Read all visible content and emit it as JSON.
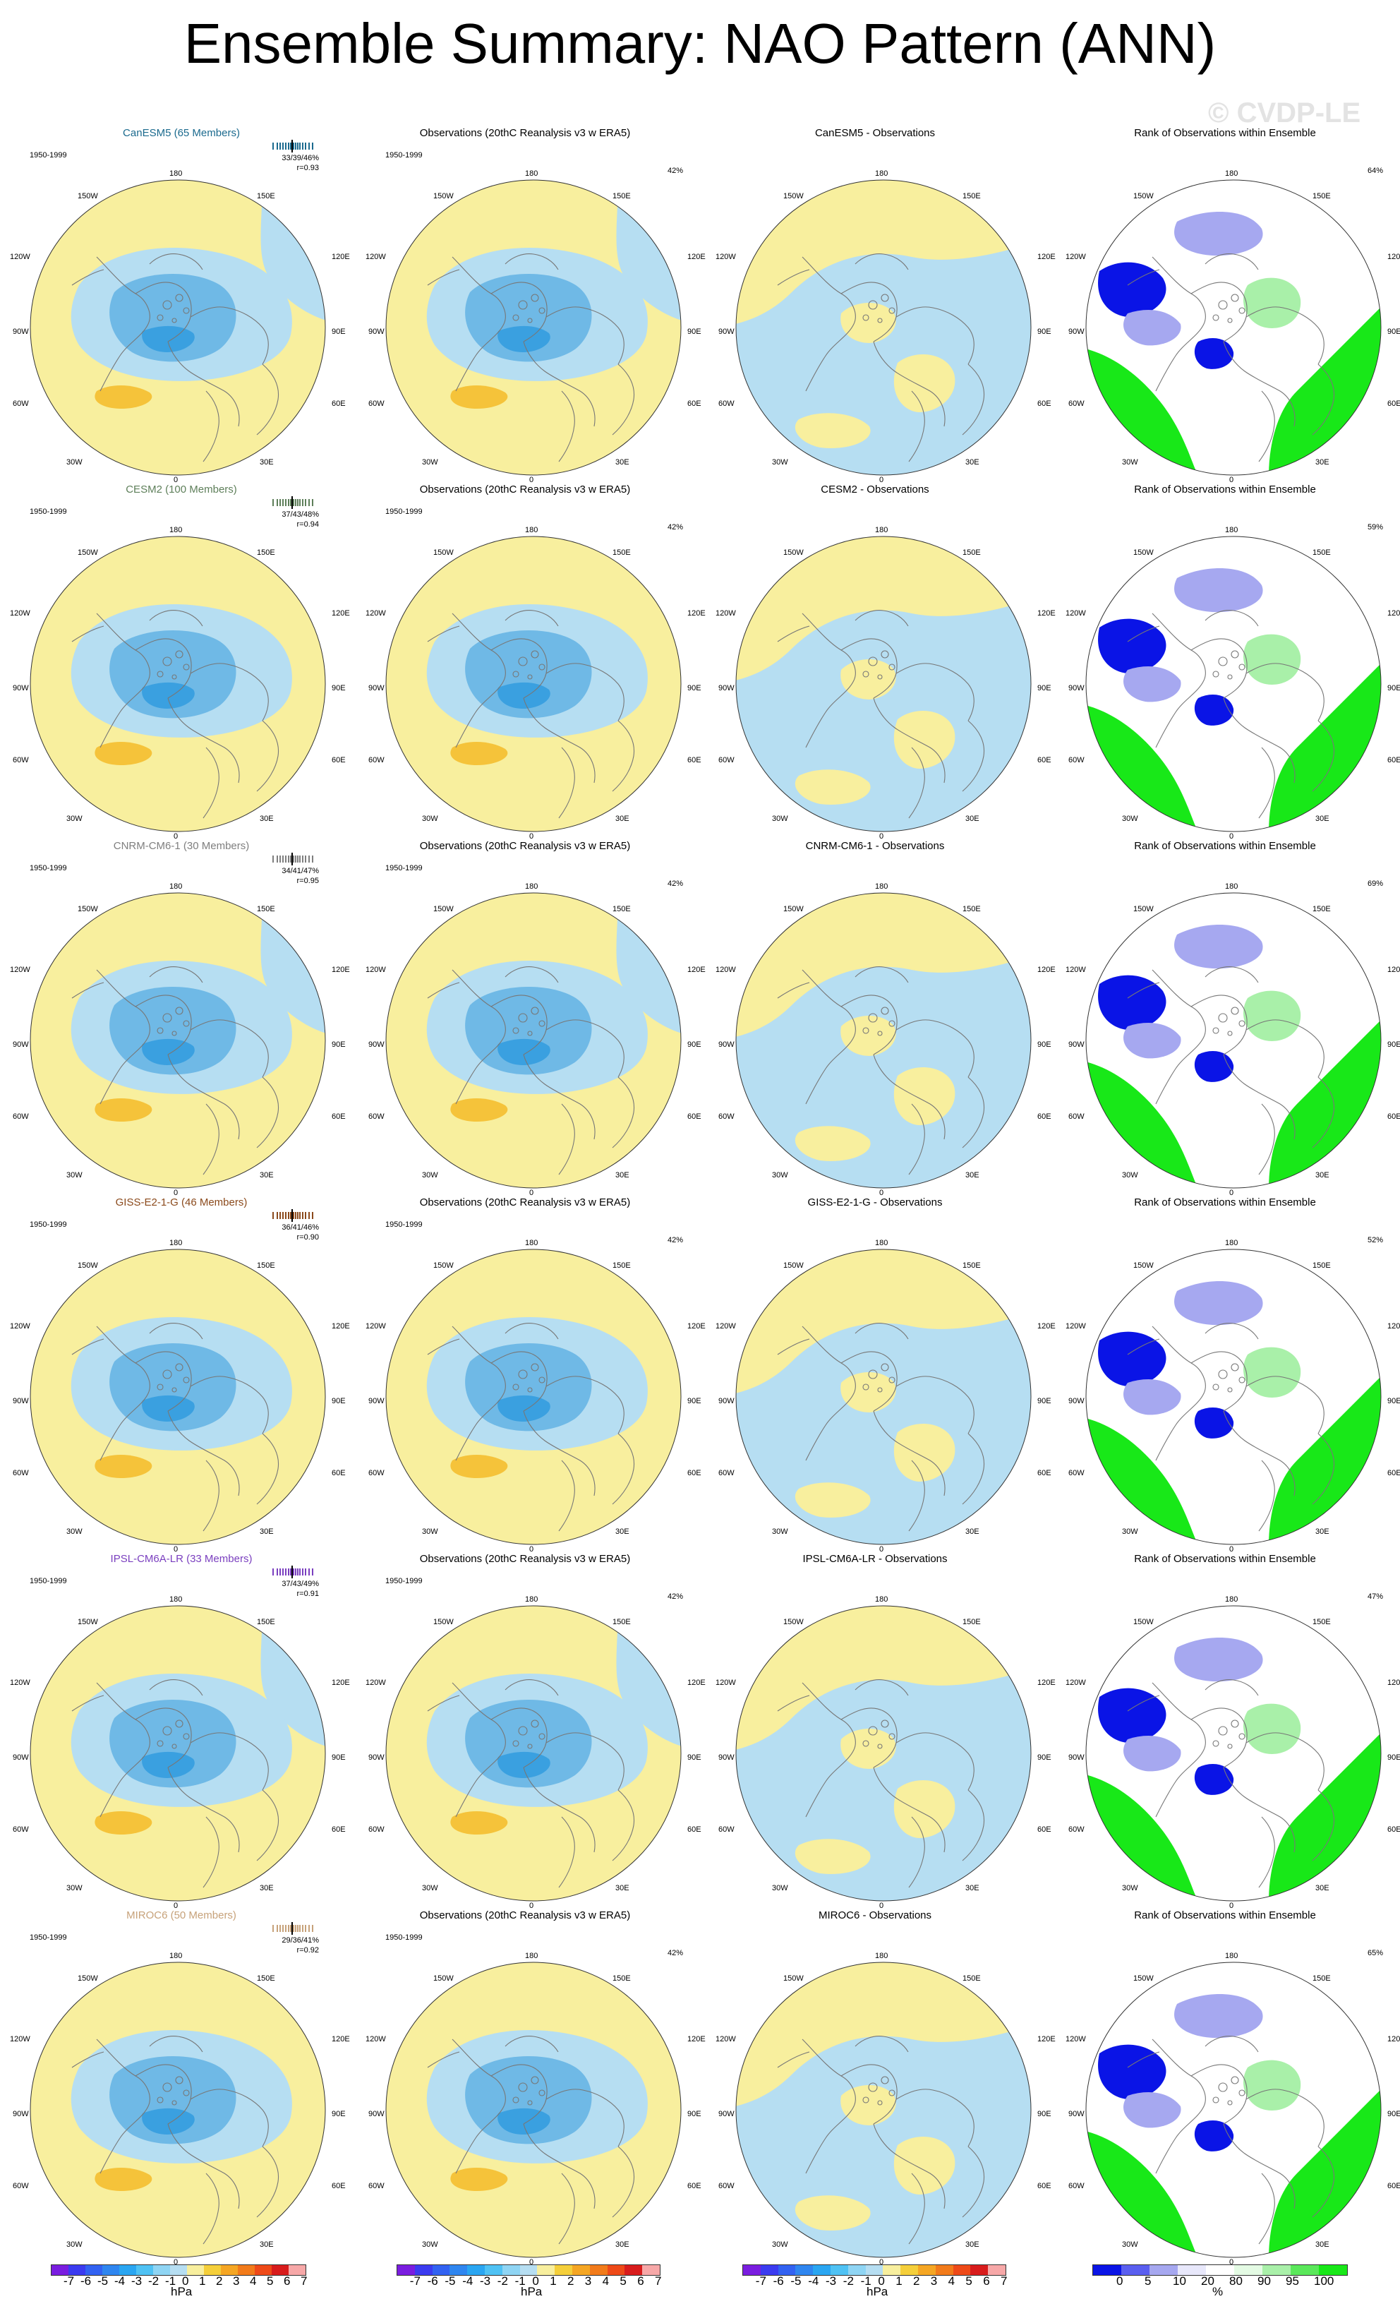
{
  "title": "Ensemble Summary: NAO Pattern (ANN)",
  "watermark": "© CVDP-LE",
  "period": "1950-1999",
  "longitudes": {
    "top": "180",
    "bottom": "0",
    "ul": "150W",
    "ur": "150E",
    "ml": "120W",
    "mr": "120E",
    "l": "90W",
    "r": "90E",
    "ll": "60W",
    "lr": "60E",
    "bl": "30W",
    "br": "30E"
  },
  "colors": {
    "positive": "#f8ef9e",
    "positive_strong": "#f5c33a",
    "negative": "#b6def2",
    "negative_mid": "#6fb9e6",
    "negative_strong": "#3aa0e0",
    "rank_low": "#0a14e6",
    "rank_mid": "#a6a8f0",
    "rank_high": "#18e818",
    "rank_midhigh": "#a9f0a9",
    "coast": "#777777"
  },
  "rows": [
    {
      "model": "CanESM5 (65 Members)",
      "model_color": "#1b6a8e",
      "stat1": "33/39/46%",
      "stat2": "r=0.93",
      "obs_title": "Observations (20thC Reanalysis v3 w ERA5)",
      "obs_pct": "42%",
      "diff_title": "CanESM5 - Observations",
      "rank_title": "Rank of Observations within Ensemble",
      "rank_pct": "64%"
    },
    {
      "model": "CESM2 (100 Members)",
      "model_color": "#5e7f5a",
      "stat1": "37/43/48%",
      "stat2": "r=0.94",
      "obs_title": "Observations (20thC Reanalysis v3 w ERA5)",
      "obs_pct": "42%",
      "diff_title": "CESM2 - Observations",
      "rank_title": "Rank of Observations within Ensemble",
      "rank_pct": "59%"
    },
    {
      "model": "CNRM-CM6-1 (30 Members)",
      "model_color": "#7f7f7f",
      "stat1": "34/41/47%",
      "stat2": "r=0.95",
      "obs_title": "Observations (20thC Reanalysis v3 w ERA5)",
      "obs_pct": "42%",
      "diff_title": "CNRM-CM6-1 - Observations",
      "rank_title": "Rank of Observations within Ensemble",
      "rank_pct": "69%"
    },
    {
      "model": "GISS-E2-1-G (46 Members)",
      "model_color": "#8b4a1c",
      "stat1": "36/41/46%",
      "stat2": "r=0.90",
      "obs_title": "Observations (20thC Reanalysis v3 w ERA5)",
      "obs_pct": "42%",
      "diff_title": "GISS-E2-1-G - Observations",
      "rank_title": "Rank of Observations within Ensemble",
      "rank_pct": "52%"
    },
    {
      "model": "IPSL-CM6A-LR (33 Members)",
      "model_color": "#7a3fbf",
      "stat1": "37/43/49%",
      "stat2": "r=0.91",
      "obs_title": "Observations (20thC Reanalysis v3 w ERA5)",
      "obs_pct": "42%",
      "diff_title": "IPSL-CM6A-LR - Observations",
      "rank_title": "Rank of Observations within Ensemble",
      "rank_pct": "47%"
    },
    {
      "model": "MIROC6 (50 Members)",
      "model_color": "#c7a27a",
      "stat1": "29/36/41%",
      "stat2": "r=0.92",
      "obs_title": "Observations (20thC Reanalysis v3 w ERA5)",
      "obs_pct": "42%",
      "diff_title": "MIROC6 - Observations",
      "rank_title": "Rank of Observations within Ensemble",
      "rank_pct": "65%"
    }
  ],
  "colorbar_hpa": {
    "labels": [
      "-7",
      "-6",
      "-5",
      "-4",
      "-3",
      "-2",
      "-1",
      "0",
      "1",
      "2",
      "3",
      "4",
      "5",
      "6",
      "7"
    ],
    "colors": [
      "#7a1de0",
      "#3b3bf0",
      "#3262f2",
      "#2f86f0",
      "#2aa6f2",
      "#4fc2f4",
      "#8fd5f4",
      "#b6def2",
      "#f8ef9e",
      "#f5cf3a",
      "#f5a623",
      "#f27b1a",
      "#ee4a18",
      "#d81c1c",
      "#f7a8a8"
    ],
    "unit": "hPa"
  },
  "colorbar_rank": {
    "labels": [
      "0",
      "5",
      "10",
      "20",
      "80",
      "90",
      "95",
      "100"
    ],
    "colors": [
      "#0a14e6",
      "#5a5ff0",
      "#a6a8f0",
      "#e8e8fb",
      "#ffffff",
      "#e4fbe4",
      "#a9f0a9",
      "#5ae85a",
      "#18e818"
    ],
    "unit": "%"
  }
}
